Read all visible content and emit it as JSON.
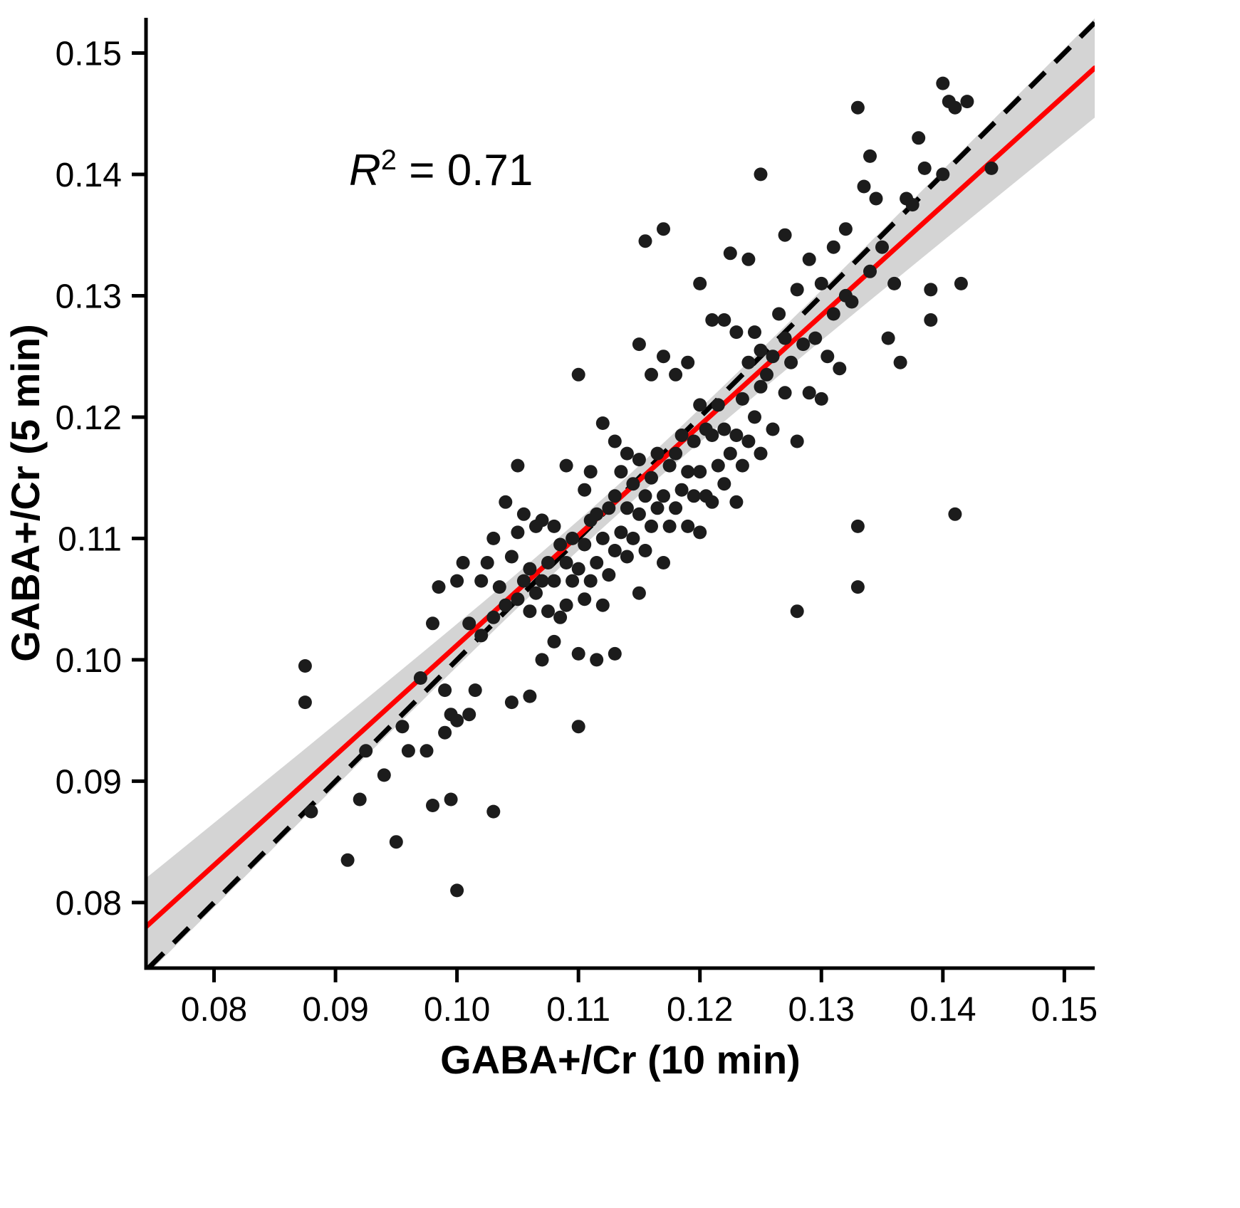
{
  "figure": {
    "background": "#ffffff",
    "text_color": "#000000"
  },
  "chart_data": {
    "type": "scatter",
    "title": "",
    "xlabel": "GABA+/Cr (10 min)",
    "ylabel": "GABA+/Cr (5 min)",
    "annotation": {
      "symbol": "R",
      "superscript": "2",
      "rest": " = 0.71"
    },
    "xlim": [
      0.0744,
      0.1525
    ],
    "ylim": [
      0.0746,
      0.1529
    ],
    "xticks": [
      0.08,
      0.09,
      0.1,
      0.11,
      0.12,
      0.13,
      0.14,
      0.15
    ],
    "yticks": [
      0.08,
      0.09,
      0.1,
      0.11,
      0.12,
      0.13,
      0.14,
      0.15
    ],
    "grid": false,
    "legend": "none",
    "point_color": "#1c1c1c",
    "point_radius": 9.5,
    "regression_line": {
      "slope": 0.906,
      "intercept": 0.0106,
      "color": "#fe0000",
      "width": 7
    },
    "identity_line": {
      "color": "#000000",
      "dashed": true,
      "dash": "30 20",
      "width": 7
    },
    "confidence_band": {
      "color": "#d4d4d4",
      "center_x": 0.113,
      "half_width_min": 0.0012,
      "half_width_slope": 0.099
    },
    "points": [
      [
        0.0875,
        0.0995
      ],
      [
        0.0875,
        0.0965
      ],
      [
        0.088,
        0.0875
      ],
      [
        0.091,
        0.0835
      ],
      [
        0.092,
        0.0885
      ],
      [
        0.0925,
        0.0925
      ],
      [
        0.094,
        0.0905
      ],
      [
        0.095,
        0.085
      ],
      [
        0.0955,
        0.0945
      ],
      [
        0.096,
        0.0925
      ],
      [
        0.097,
        0.0985
      ],
      [
        0.0975,
        0.0925
      ],
      [
        0.098,
        0.088
      ],
      [
        0.098,
        0.103
      ],
      [
        0.0985,
        0.106
      ],
      [
        0.099,
        0.0975
      ],
      [
        0.099,
        0.094
      ],
      [
        0.0995,
        0.0885
      ],
      [
        0.0995,
        0.0955
      ],
      [
        0.1,
        0.081
      ],
      [
        0.1,
        0.095
      ],
      [
        0.1,
        0.1065
      ],
      [
        0.1005,
        0.108
      ],
      [
        0.101,
        0.0955
      ],
      [
        0.101,
        0.103
      ],
      [
        0.1015,
        0.0975
      ],
      [
        0.102,
        0.102
      ],
      [
        0.102,
        0.1065
      ],
      [
        0.1025,
        0.108
      ],
      [
        0.103,
        0.0875
      ],
      [
        0.103,
        0.1035
      ],
      [
        0.103,
        0.11
      ],
      [
        0.1035,
        0.106
      ],
      [
        0.104,
        0.1045
      ],
      [
        0.104,
        0.113
      ],
      [
        0.1045,
        0.1085
      ],
      [
        0.1045,
        0.0965
      ],
      [
        0.105,
        0.105
      ],
      [
        0.105,
        0.1105
      ],
      [
        0.105,
        0.116
      ],
      [
        0.1055,
        0.1065
      ],
      [
        0.1055,
        0.112
      ],
      [
        0.106,
        0.104
      ],
      [
        0.106,
        0.1075
      ],
      [
        0.106,
        0.097
      ],
      [
        0.1065,
        0.1055
      ],
      [
        0.1065,
        0.111
      ],
      [
        0.107,
        0.1
      ],
      [
        0.107,
        0.1065
      ],
      [
        0.107,
        0.1115
      ],
      [
        0.1075,
        0.104
      ],
      [
        0.1075,
        0.108
      ],
      [
        0.108,
        0.1015
      ],
      [
        0.108,
        0.1065
      ],
      [
        0.108,
        0.111
      ],
      [
        0.1085,
        0.1035
      ],
      [
        0.1085,
        0.1095
      ],
      [
        0.109,
        0.1045
      ],
      [
        0.109,
        0.108
      ],
      [
        0.109,
        0.116
      ],
      [
        0.1095,
        0.1065
      ],
      [
        0.1095,
        0.11
      ],
      [
        0.11,
        0.0945
      ],
      [
        0.11,
        0.1005
      ],
      [
        0.11,
        0.1075
      ],
      [
        0.11,
        0.1235
      ],
      [
        0.1105,
        0.105
      ],
      [
        0.1105,
        0.1095
      ],
      [
        0.1105,
        0.114
      ],
      [
        0.111,
        0.1065
      ],
      [
        0.111,
        0.1115
      ],
      [
        0.111,
        0.1155
      ],
      [
        0.1115,
        0.1
      ],
      [
        0.1115,
        0.108
      ],
      [
        0.1115,
        0.112
      ],
      [
        0.112,
        0.1045
      ],
      [
        0.112,
        0.11
      ],
      [
        0.112,
        0.1195
      ],
      [
        0.1125,
        0.107
      ],
      [
        0.1125,
        0.1125
      ],
      [
        0.113,
        0.1005
      ],
      [
        0.113,
        0.109
      ],
      [
        0.113,
        0.1135
      ],
      [
        0.113,
        0.118
      ],
      [
        0.1135,
        0.1105
      ],
      [
        0.1135,
        0.1155
      ],
      [
        0.114,
        0.1085
      ],
      [
        0.114,
        0.1125
      ],
      [
        0.114,
        0.117
      ],
      [
        0.1145,
        0.11
      ],
      [
        0.1145,
        0.1145
      ],
      [
        0.115,
        0.1055
      ],
      [
        0.115,
        0.112
      ],
      [
        0.115,
        0.1165
      ],
      [
        0.115,
        0.126
      ],
      [
        0.1155,
        0.109
      ],
      [
        0.1155,
        0.1135
      ],
      [
        0.1155,
        0.1345
      ],
      [
        0.116,
        0.111
      ],
      [
        0.116,
        0.115
      ],
      [
        0.116,
        0.1235
      ],
      [
        0.1165,
        0.1125
      ],
      [
        0.1165,
        0.117
      ],
      [
        0.117,
        0.108
      ],
      [
        0.117,
        0.1135
      ],
      [
        0.117,
        0.125
      ],
      [
        0.117,
        0.1355
      ],
      [
        0.1175,
        0.111
      ],
      [
        0.1175,
        0.116
      ],
      [
        0.118,
        0.1125
      ],
      [
        0.118,
        0.117
      ],
      [
        0.118,
        0.1235
      ],
      [
        0.1185,
        0.114
      ],
      [
        0.1185,
        0.1185
      ],
      [
        0.119,
        0.111
      ],
      [
        0.119,
        0.1155
      ],
      [
        0.119,
        0.1245
      ],
      [
        0.1195,
        0.1135
      ],
      [
        0.1195,
        0.118
      ],
      [
        0.12,
        0.1105
      ],
      [
        0.12,
        0.1155
      ],
      [
        0.12,
        0.121
      ],
      [
        0.12,
        0.131
      ],
      [
        0.1205,
        0.1135
      ],
      [
        0.1205,
        0.119
      ],
      [
        0.121,
        0.113
      ],
      [
        0.121,
        0.1185
      ],
      [
        0.121,
        0.128
      ],
      [
        0.1215,
        0.116
      ],
      [
        0.1215,
        0.121
      ],
      [
        0.122,
        0.1145
      ],
      [
        0.122,
        0.119
      ],
      [
        0.122,
        0.128
      ],
      [
        0.1225,
        0.117
      ],
      [
        0.1225,
        0.1335
      ],
      [
        0.123,
        0.113
      ],
      [
        0.123,
        0.1185
      ],
      [
        0.123,
        0.127
      ],
      [
        0.1235,
        0.116
      ],
      [
        0.1235,
        0.1215
      ],
      [
        0.124,
        0.118
      ],
      [
        0.124,
        0.1245
      ],
      [
        0.124,
        0.133
      ],
      [
        0.1245,
        0.12
      ],
      [
        0.1245,
        0.127
      ],
      [
        0.125,
        0.117
      ],
      [
        0.125,
        0.1225
      ],
      [
        0.125,
        0.1255
      ],
      [
        0.125,
        0.14
      ],
      [
        0.1255,
        0.1235
      ],
      [
        0.126,
        0.119
      ],
      [
        0.126,
        0.125
      ],
      [
        0.1265,
        0.1285
      ],
      [
        0.127,
        0.122
      ],
      [
        0.127,
        0.1265
      ],
      [
        0.127,
        0.135
      ],
      [
        0.1275,
        0.1245
      ],
      [
        0.128,
        0.104
      ],
      [
        0.128,
        0.118
      ],
      [
        0.128,
        0.1305
      ],
      [
        0.1285,
        0.126
      ],
      [
        0.129,
        0.122
      ],
      [
        0.129,
        0.133
      ],
      [
        0.1295,
        0.1265
      ],
      [
        0.13,
        0.1215
      ],
      [
        0.13,
        0.131
      ],
      [
        0.1305,
        0.125
      ],
      [
        0.131,
        0.1285
      ],
      [
        0.131,
        0.134
      ],
      [
        0.1315,
        0.124
      ],
      [
        0.132,
        0.13
      ],
      [
        0.132,
        0.1355
      ],
      [
        0.1325,
        0.1295
      ],
      [
        0.133,
        0.106
      ],
      [
        0.133,
        0.111
      ],
      [
        0.133,
        0.1455
      ],
      [
        0.1335,
        0.139
      ],
      [
        0.134,
        0.132
      ],
      [
        0.134,
        0.1415
      ],
      [
        0.1345,
        0.138
      ],
      [
        0.135,
        0.134
      ],
      [
        0.1355,
        0.1265
      ],
      [
        0.136,
        0.131
      ],
      [
        0.1365,
        0.1245
      ],
      [
        0.137,
        0.138
      ],
      [
        0.1375,
        0.1375
      ],
      [
        0.138,
        0.143
      ],
      [
        0.1385,
        0.1405
      ],
      [
        0.139,
        0.128
      ],
      [
        0.139,
        0.1305
      ],
      [
        0.14,
        0.14
      ],
      [
        0.14,
        0.1475
      ],
      [
        0.1405,
        0.146
      ],
      [
        0.141,
        0.112
      ],
      [
        0.141,
        0.1455
      ],
      [
        0.1415,
        0.131
      ],
      [
        0.142,
        0.146
      ],
      [
        0.144,
        0.1405
      ]
    ]
  }
}
